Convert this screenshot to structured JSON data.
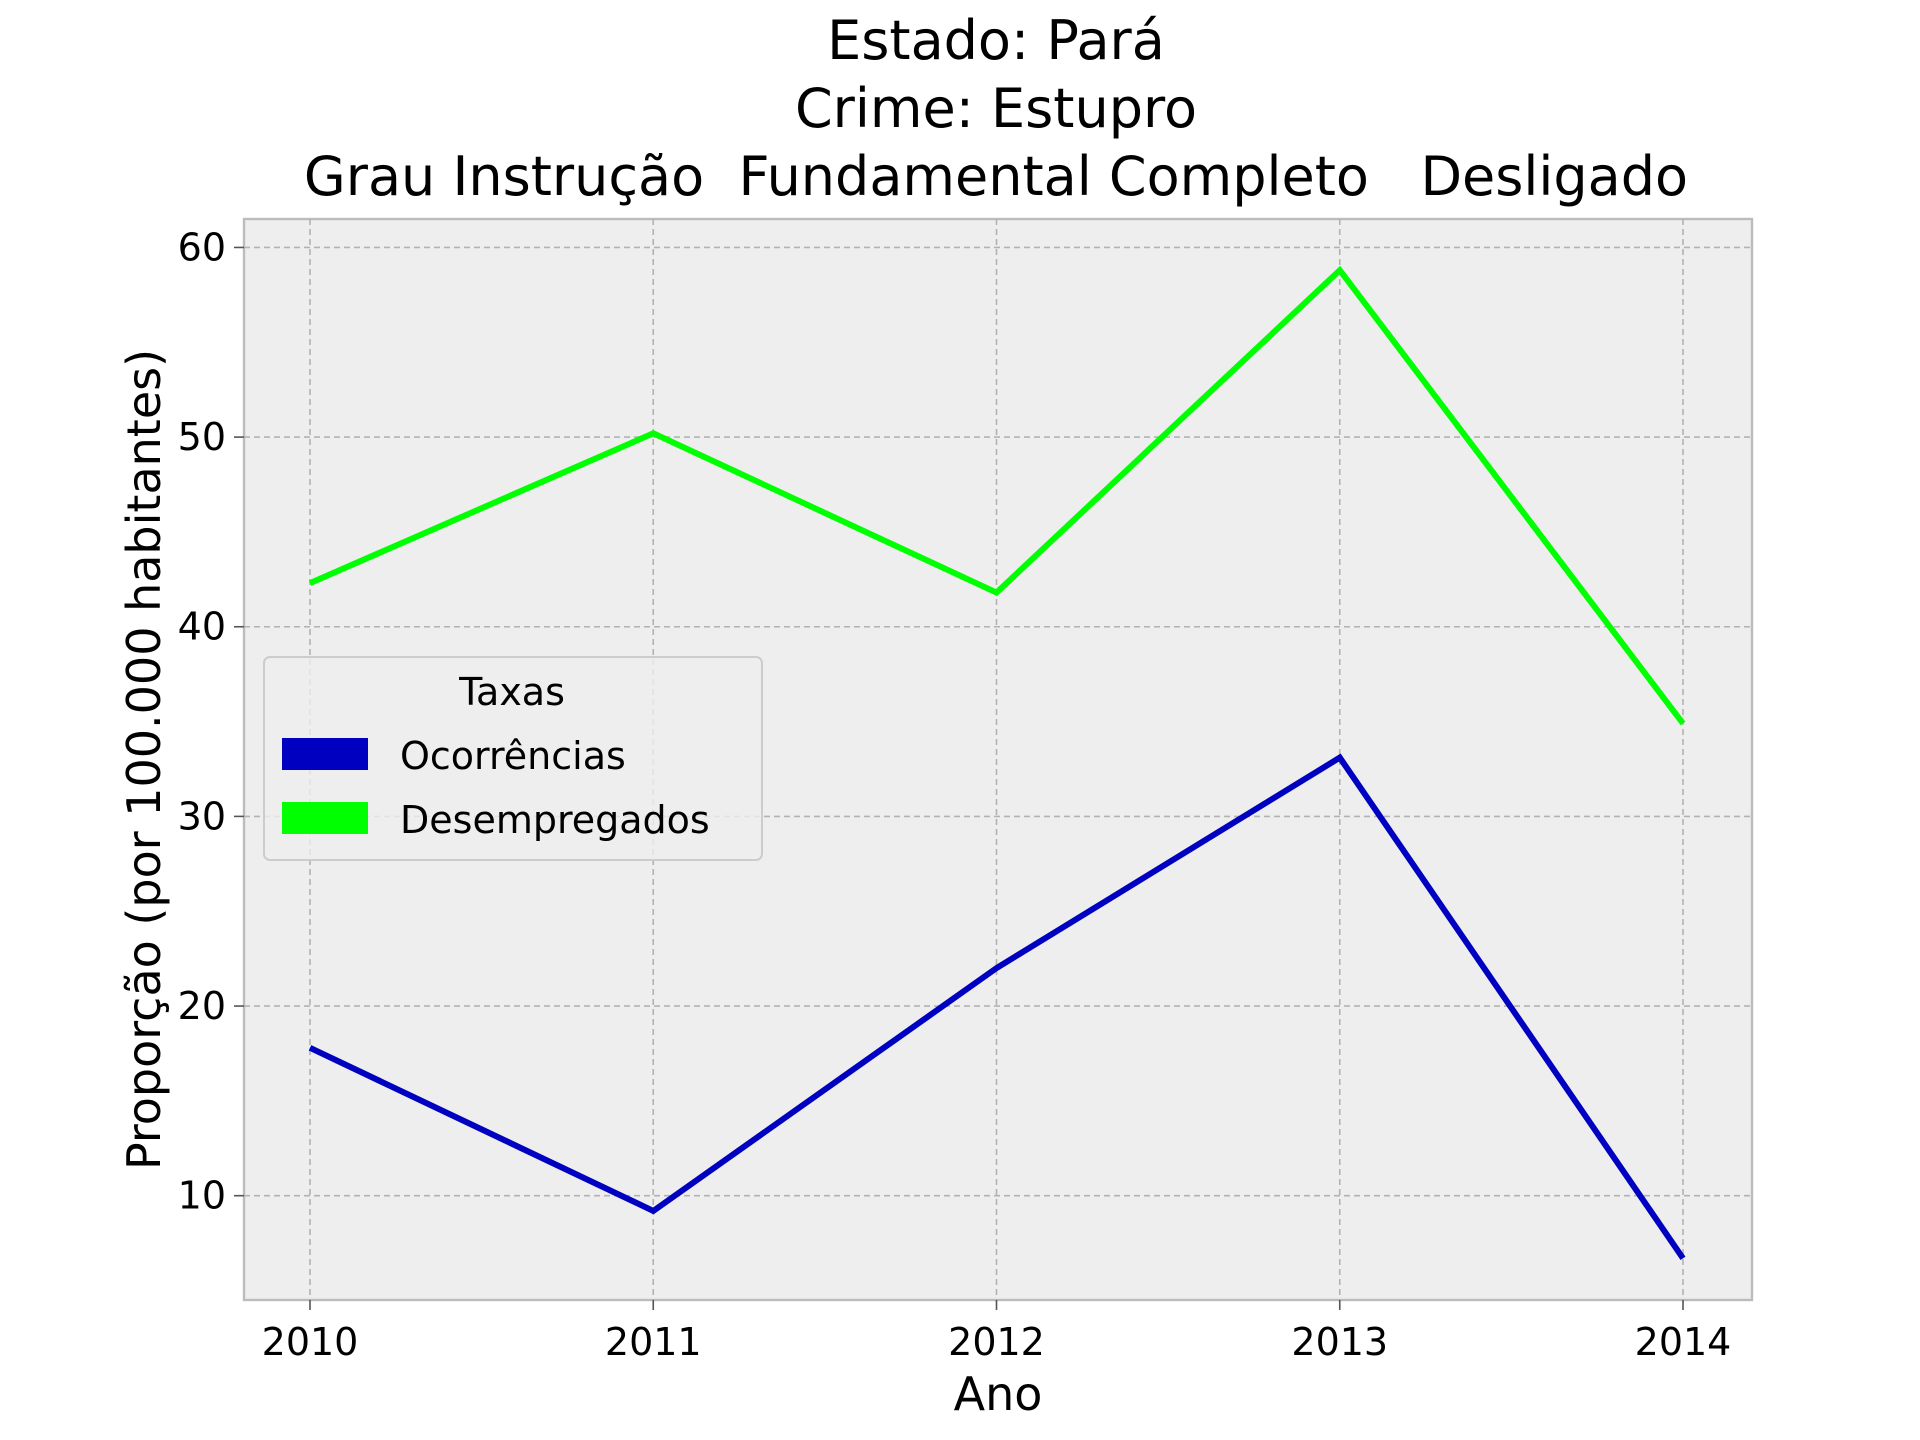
{
  "chart_data": {
    "type": "line",
    "title_lines": [
      "Estado: Pará",
      "Crime: Estupro",
      "Grau Instrução  Fundamental Completo   Desligado"
    ],
    "xlabel": "Ano",
    "ylabel": "Proporção (por 100.000 habitantes)",
    "x": [
      "2010",
      "2011",
      "2012",
      "2013",
      "2014"
    ],
    "yticks": [
      10,
      20,
      30,
      40,
      50,
      60
    ],
    "ylim": [
      4.5,
      61.5
    ],
    "grid": true,
    "legend": {
      "title": "Taxas",
      "placement": "center-left"
    },
    "series": [
      {
        "name": "Ocorrências",
        "color": "#0000c0",
        "values": [
          17.8,
          9.2,
          22.0,
          33.1,
          6.7
        ]
      },
      {
        "name": "Desempregados",
        "color": "#00ff00",
        "values": [
          42.3,
          50.2,
          41.8,
          58.8,
          34.9
        ]
      }
    ]
  }
}
